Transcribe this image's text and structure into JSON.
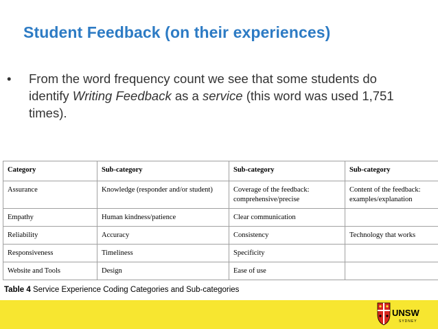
{
  "slide": {
    "title": "Student Feedback (on their experiences)"
  },
  "bullet": {
    "mark": "•",
    "text_before": "From the word frequency count we see that some students do identify ",
    "italic_1": "Writing Feedback",
    "text_mid": " as a ",
    "italic_2": "service",
    "text_after": " (this word was used 1,751 times)."
  },
  "table": {
    "headers": [
      "Category",
      "Sub-category",
      "Sub-category",
      "Sub-category"
    ],
    "rows": [
      [
        "Assurance",
        "Knowledge (responder and/or student)",
        "Coverage of the feedback: comprehensive/precise",
        "Content of the feedback: examples/explanation"
      ],
      [
        "Empathy",
        "Human kindness/patience",
        "Clear communication",
        ""
      ],
      [
        "Reliability",
        "Accuracy",
        "Consistency",
        "Technology that works"
      ],
      [
        "Responsiveness",
        "Timeliness",
        "Specificity",
        ""
      ],
      [
        "Website and Tools",
        "Design",
        "Ease of use",
        ""
      ]
    ]
  },
  "caption": {
    "label": "Table 4",
    "text": " Service Experience Coding Categories and Sub-categories"
  },
  "footer": {
    "logo_text": "UNSW",
    "logo_subtext": "SYDNEY"
  },
  "colors": {
    "title": "#2d7bc4",
    "footer_bar": "#f7e630",
    "logo_red": "#d7261e"
  }
}
